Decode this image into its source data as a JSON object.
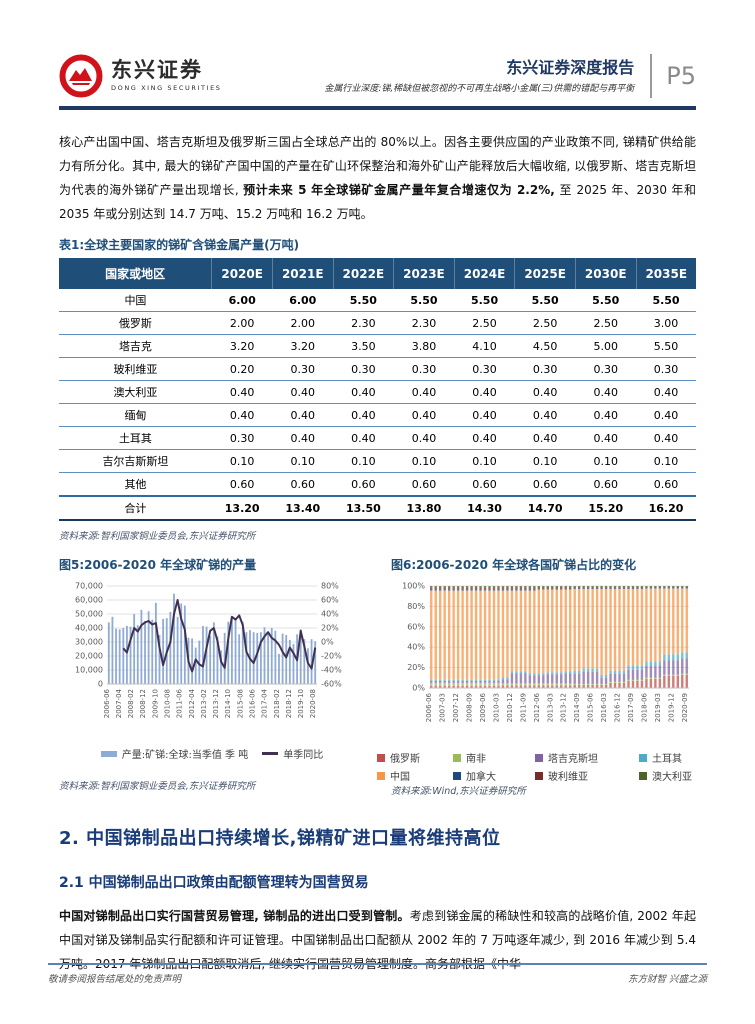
{
  "theme": {
    "brand_navy": "#1F3864",
    "table_header_bg": "#1F4E79",
    "rule_blue": "#5B84B1",
    "logo_red": "#D0121B"
  },
  "header": {
    "logo_text": "东兴证券",
    "logo_sub": "DONG XING SECURITIES",
    "report_type": "东兴证券深度报告",
    "report_subtitle": "金属行业深度:锑,稀缺但被忽视的不可再生战略小金属(三)供需的错配与再平衡",
    "page_number": "P5"
  },
  "intro": {
    "p1_normal1": "核心产出国中国、塔吉克斯坦及俄罗斯三国占全球总产出的 80%以上。因各主要供应国的产业政策不同, 锑精矿供给能力有所分化。其中, 最大的锑矿产国中国的产量在矿山环保整治和海外矿山产能释放后大幅收缩, 以俄罗斯、塔吉克斯坦为代表的海外锑矿产量出现增长, ",
    "p1_bold": "预计未来 5 年全球锑矿金属产量年复合增速仅为 2.2%, ",
    "p1_normal2": "至 2025 年、2030 年和 2035 年或分别达到 14.7 万吨、15.2 万吨和 16.2 万吨。"
  },
  "table": {
    "caption": "表1:全球主要国家的锑矿含锑金属产量(万吨)",
    "columns": [
      "国家或地区",
      "2020E",
      "2021E",
      "2022E",
      "2023E",
      "2024E",
      "2025E",
      "2030E",
      "2035E"
    ],
    "rows": [
      {
        "label": "中国",
        "values": [
          "6.00",
          "6.00",
          "5.50",
          "5.50",
          "5.50",
          "5.50",
          "5.50",
          "5.50"
        ],
        "bold": true
      },
      {
        "label": "俄罗斯",
        "values": [
          "2.00",
          "2.00",
          "2.30",
          "2.30",
          "2.50",
          "2.50",
          "2.50",
          "3.00"
        ],
        "bold": false
      },
      {
        "label": "塔吉克",
        "values": [
          "3.20",
          "3.20",
          "3.50",
          "3.80",
          "4.10",
          "4.50",
          "5.00",
          "5.50"
        ],
        "bold": false
      },
      {
        "label": "玻利维亚",
        "values": [
          "0.20",
          "0.30",
          "0.30",
          "0.30",
          "0.30",
          "0.30",
          "0.30",
          "0.30"
        ],
        "bold": false
      },
      {
        "label": "澳大利亚",
        "values": [
          "0.40",
          "0.40",
          "0.40",
          "0.40",
          "0.40",
          "0.40",
          "0.40",
          "0.40"
        ],
        "bold": false
      },
      {
        "label": "缅甸",
        "values": [
          "0.40",
          "0.40",
          "0.40",
          "0.40",
          "0.40",
          "0.40",
          "0.40",
          "0.40"
        ],
        "bold": false
      },
      {
        "label": "土耳其",
        "values": [
          "0.30",
          "0.40",
          "0.40",
          "0.40",
          "0.40",
          "0.40",
          "0.40",
          "0.40"
        ],
        "bold": false
      },
      {
        "label": "吉尔吉斯斯坦",
        "values": [
          "0.10",
          "0.10",
          "0.10",
          "0.10",
          "0.10",
          "0.10",
          "0.10",
          "0.10"
        ],
        "bold": false
      },
      {
        "label": "其他",
        "values": [
          "0.60",
          "0.60",
          "0.60",
          "0.60",
          "0.60",
          "0.60",
          "0.60",
          "0.60"
        ],
        "bold": false
      },
      {
        "label": "合计",
        "values": [
          "13.20",
          "13.40",
          "13.50",
          "13.80",
          "14.30",
          "14.70",
          "15.20",
          "16.20"
        ],
        "bold": true
      }
    ],
    "source": "资料来源:智利国家铜业委员会,东兴证券研究所"
  },
  "chart_data": [
    {
      "type": "bar",
      "title": "图5:2006-2020 年全球矿锑的产量",
      "x_tick_labels": [
        "2006-06",
        "2007-04",
        "2008-02",
        "2008-12",
        "2009-10",
        "2010-08",
        "2011-06",
        "2012-04",
        "2013-02",
        "2013-12",
        "2014-10",
        "2015-08",
        "2016-06",
        "2017-04",
        "2018-02",
        "2018-12",
        "2019-10",
        "2020-08"
      ],
      "left_axis": {
        "min": 0,
        "max": 70000,
        "tick_step": 10000
      },
      "right_axis": {
        "min": -60,
        "max": 80,
        "tick_step": 20,
        "format": "percent"
      },
      "grid": true,
      "legend_position": "bottom",
      "series": [
        {
          "name": "产量:矿锑:全球:当季值 季 吨",
          "type": "bar",
          "axis": "left",
          "color": "#8FAAD4",
          "values": [
            44000,
            48000,
            39500,
            39000,
            40000,
            41500,
            41000,
            50000,
            42000,
            53000,
            45000,
            52000,
            46000,
            58000,
            35000,
            46500,
            47000,
            51500,
            64500,
            48000,
            57500,
            56000,
            33000,
            32500,
            26000,
            31000,
            41500,
            41000,
            34500,
            44000,
            34000,
            24000,
            36500,
            44500,
            47500,
            46000,
            35500,
            44500,
            37000,
            38500,
            37000,
            36500,
            37000,
            40500,
            37500,
            40000,
            38000,
            21500,
            36000,
            35000,
            31500,
            28500,
            35500,
            39000,
            32000,
            25500,
            32000,
            30500
          ]
        },
        {
          "name": "单季同比",
          "type": "line",
          "axis": "right",
          "color": "#403152",
          "values": [
            null,
            null,
            null,
            null,
            -9,
            -15,
            3,
            20,
            15,
            24,
            28,
            30,
            25,
            27,
            -8,
            -33,
            -15,
            0,
            40,
            60,
            33,
            18,
            -28,
            -42,
            -25,
            -32,
            -35,
            -8,
            16,
            20,
            2,
            -28,
            -37,
            5,
            36,
            32,
            38,
            24,
            -14,
            -24,
            -30,
            -16,
            0,
            8,
            14,
            6,
            2,
            -4,
            -14,
            -22,
            -8,
            -16,
            -26,
            16,
            -6,
            -30,
            -38,
            -8
          ]
        }
      ],
      "source": "资料来源:智利国家铜业委员会,东兴证券研究所"
    },
    {
      "type": "stacked-bar-100",
      "title": "图6:2006-2020 年全球各国矿锑占比的变化",
      "x_tick_labels": [
        "2006-06",
        "2007-03",
        "2007-12",
        "2008-09",
        "2009-06",
        "2010-03",
        "2010-12",
        "2011-09",
        "2012-06",
        "2013-03",
        "2013-12",
        "2014-09",
        "2015-06",
        "2016-03",
        "2016-12",
        "2017-09",
        "2018-06",
        "2019-03",
        "2019-12",
        "2020-09"
      ],
      "x_tick_every": 3,
      "y_axis": {
        "min": 0,
        "max": 100,
        "ticks": [
          "0%",
          "20%",
          "40%",
          "60%",
          "80%",
          "100%"
        ]
      },
      "grid": true,
      "legend_position": "bottom",
      "series": [
        {
          "name": "俄罗斯",
          "color": "#C0504D",
          "values": [
            2,
            2,
            2,
            2,
            2,
            2,
            2,
            2,
            2,
            2,
            2,
            2,
            2,
            2,
            2,
            2,
            2.5,
            2.5,
            2.5,
            2.5,
            2.5,
            2.5,
            2.5,
            2.5,
            2.5,
            2.5,
            2.5,
            2.5,
            2.5,
            2.5,
            2.5,
            2.5,
            3,
            3,
            3,
            3,
            3,
            3,
            3,
            3,
            5,
            5,
            5,
            5,
            7,
            7,
            7,
            7,
            9,
            9,
            9,
            9,
            12,
            12,
            12,
            12,
            13,
            13
          ]
        },
        {
          "name": "南非",
          "color": "#9BBB59",
          "values": [
            3,
            3,
            3,
            3,
            3,
            3,
            3,
            3,
            3,
            3,
            3,
            3,
            3,
            3,
            3,
            3,
            2,
            2,
            2,
            2,
            2,
            2,
            2,
            2,
            2,
            2,
            2,
            2,
            2,
            2,
            2,
            2,
            1,
            1,
            1,
            1,
            1,
            1,
            1,
            1,
            1,
            1,
            1,
            1,
            1,
            1,
            1,
            1,
            1,
            1,
            1,
            1,
            1,
            1,
            1,
            1,
            1,
            1
          ]
        },
        {
          "name": "塔吉克斯坦",
          "color": "#8064A2",
          "values": [
            2,
            2,
            2,
            2,
            2,
            2,
            2,
            2,
            2,
            2,
            2,
            2,
            2,
            2,
            2,
            2,
            4,
            4,
            10,
            10,
            10,
            10,
            8,
            8,
            8,
            8,
            9,
            9,
            9,
            9,
            10,
            10,
            10,
            10,
            12,
            12,
            12,
            12,
            6,
            6,
            8,
            8,
            8,
            8,
            10,
            10,
            10,
            10,
            12,
            12,
            12,
            12,
            14,
            14,
            14,
            14,
            15,
            15
          ]
        },
        {
          "name": "土耳其",
          "color": "#4BACC6",
          "values": [
            1,
            1,
            1,
            1,
            1,
            1,
            1,
            1,
            1,
            1,
            1,
            1,
            1,
            1,
            1,
            1,
            2,
            2,
            2,
            2,
            2,
            2,
            2,
            2,
            2,
            2,
            2,
            2,
            2,
            2,
            2,
            2,
            3,
            3,
            3,
            3,
            3,
            3,
            3,
            3,
            3,
            3,
            3,
            3,
            4,
            4,
            4,
            4,
            4,
            4,
            4,
            4,
            6,
            6,
            6,
            6,
            6,
            6
          ]
        },
        {
          "name": "中国",
          "color": "#F79646",
          "values": [
            87.5,
            87.5,
            87.5,
            87.5,
            87.5,
            87.5,
            87.5,
            87.5,
            87.5,
            87.5,
            87.5,
            87.5,
            87.5,
            87.5,
            87.5,
            87.5,
            85,
            85,
            79,
            79,
            79,
            79,
            81,
            81,
            82,
            82,
            81,
            81,
            81,
            81,
            80,
            80,
            80,
            80,
            78,
            78,
            78,
            78,
            84,
            84,
            80,
            80,
            80,
            80,
            75,
            75,
            75,
            75,
            71.5,
            71.5,
            71.5,
            71.5,
            64.5,
            64.5,
            64.5,
            64.5,
            62.5,
            62.5
          ]
        },
        {
          "name": "加拿大",
          "color": "#1F497D",
          "values": [
            1,
            1,
            1,
            1,
            1,
            1,
            1,
            1,
            1,
            1,
            1,
            1,
            1,
            1,
            1,
            1,
            1,
            1,
            1,
            1,
            1,
            1,
            1,
            1,
            0.5,
            0.5,
            0.5,
            0.5,
            0.5,
            0.5,
            0.5,
            0.5,
            0.5,
            0.5,
            0.5,
            0.5,
            0.5,
            0.5,
            0.5,
            0.5,
            0.5,
            0.5,
            0.5,
            0.5,
            0.5,
            0.5,
            0.5,
            0.5,
            0.5,
            0.5,
            0.5,
            0.5,
            0.5,
            0.5,
            0.5,
            0.5,
            0.5,
            0.5
          ]
        },
        {
          "name": "玻利维亚",
          "color": "#772C2A",
          "values": [
            2,
            2,
            2,
            2,
            2,
            2,
            2,
            2,
            2,
            2,
            2,
            2,
            2,
            2,
            2,
            2,
            2,
            2,
            2,
            2,
            2,
            2,
            2,
            2,
            2,
            2,
            2,
            2,
            2,
            2,
            2,
            2,
            1.5,
            1.5,
            1.5,
            1.5,
            1.5,
            1.5,
            1.5,
            1.5,
            1.5,
            1.5,
            1.5,
            1.5,
            1.5,
            1.5,
            1.5,
            1.5,
            1,
            1,
            1,
            1,
            1,
            1,
            1,
            1,
            1,
            1
          ]
        },
        {
          "name": "澳大利亚",
          "color": "#4F6228",
          "values": [
            1.5,
            1.5,
            1.5,
            1.5,
            1.5,
            1.5,
            1.5,
            1.5,
            1.5,
            1.5,
            1.5,
            1.5,
            1.5,
            1.5,
            1.5,
            1.5,
            1.5,
            1.5,
            1.5,
            1.5,
            1.5,
            1.5,
            1.5,
            1.5,
            1,
            1,
            1,
            1,
            1,
            1,
            1,
            1,
            1,
            1,
            1,
            1,
            1,
            1,
            1,
            1,
            1,
            1,
            1,
            1,
            1,
            1,
            1,
            1,
            1,
            1,
            1,
            1,
            1,
            1,
            1,
            1,
            1,
            1
          ]
        }
      ],
      "source": "资料来源:Wind,东兴证券研究所"
    }
  ],
  "section": {
    "h2": "2. 中国锑制品出口持续增长,锑精矿进口量将维持高位",
    "h3": "2.1 中国锑制品出口政策由配额管理转为国营贸易",
    "p2_bold": "中国对锑制品出口实行国营贸易管理, 锑制品的进出口受到管制。",
    "p2_normal": "考虑到锑金属的稀缺性和较高的战略价值, 2002 年起中国对锑及锑制品实行配额和许可证管理。中国锑制品出口配额从 2002 年的 7 万吨逐年减少, 到 2016 年减少到 5.4 万吨。2017 年锑制品出口配额取消后, 继续实行国营贸易管理制度。商务部根据《中华"
  },
  "footer": {
    "left": "敬请参阅报告结尾处的免责声明",
    "right": "东方财智 兴盛之源"
  }
}
